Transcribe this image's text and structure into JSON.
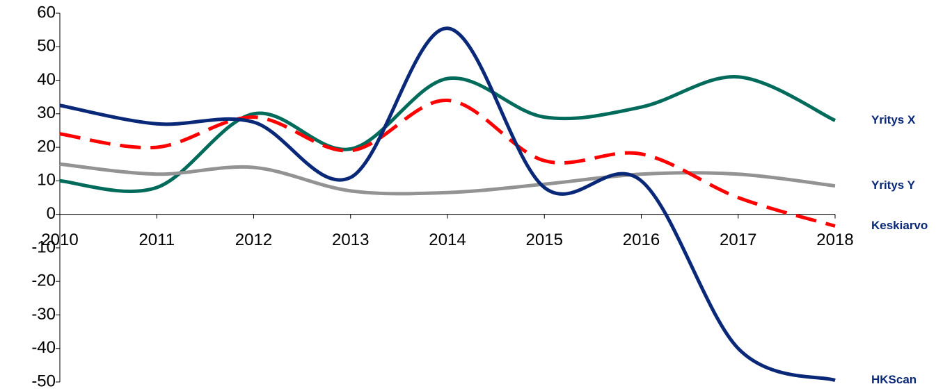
{
  "chart_data": {
    "type": "line",
    "categories": [
      "2010",
      "2011",
      "2012",
      "2013",
      "2014",
      "2015",
      "2016",
      "2017",
      "2018"
    ],
    "series": [
      {
        "name": "Yritys X",
        "color": "#006b5b",
        "dashed": false,
        "values": [
          10,
          8,
          30,
          19.5,
          40.5,
          29,
          32,
          41,
          28
        ]
      },
      {
        "name": "Yritys Y",
        "color": "#939393",
        "dashed": false,
        "values": [
          15,
          12,
          14,
          7,
          6.5,
          9,
          12,
          12,
          8.5
        ]
      },
      {
        "name": "Keskiarvo",
        "color": "#ff0000",
        "dashed": true,
        "values": [
          24,
          20,
          29,
          19,
          34,
          16,
          18,
          5,
          -3.5
        ]
      },
      {
        "name": "HKScan",
        "color": "#0a2878",
        "dashed": false,
        "values": [
          32.5,
          27,
          27.5,
          11,
          55.5,
          8,
          10,
          -40,
          -49.5
        ]
      }
    ],
    "ylim": [
      -50,
      60
    ],
    "yticks": [
      -50,
      -40,
      -30,
      -20,
      -10,
      0,
      10,
      20,
      30,
      40,
      50,
      60
    ],
    "smooth": true,
    "grid": false
  }
}
